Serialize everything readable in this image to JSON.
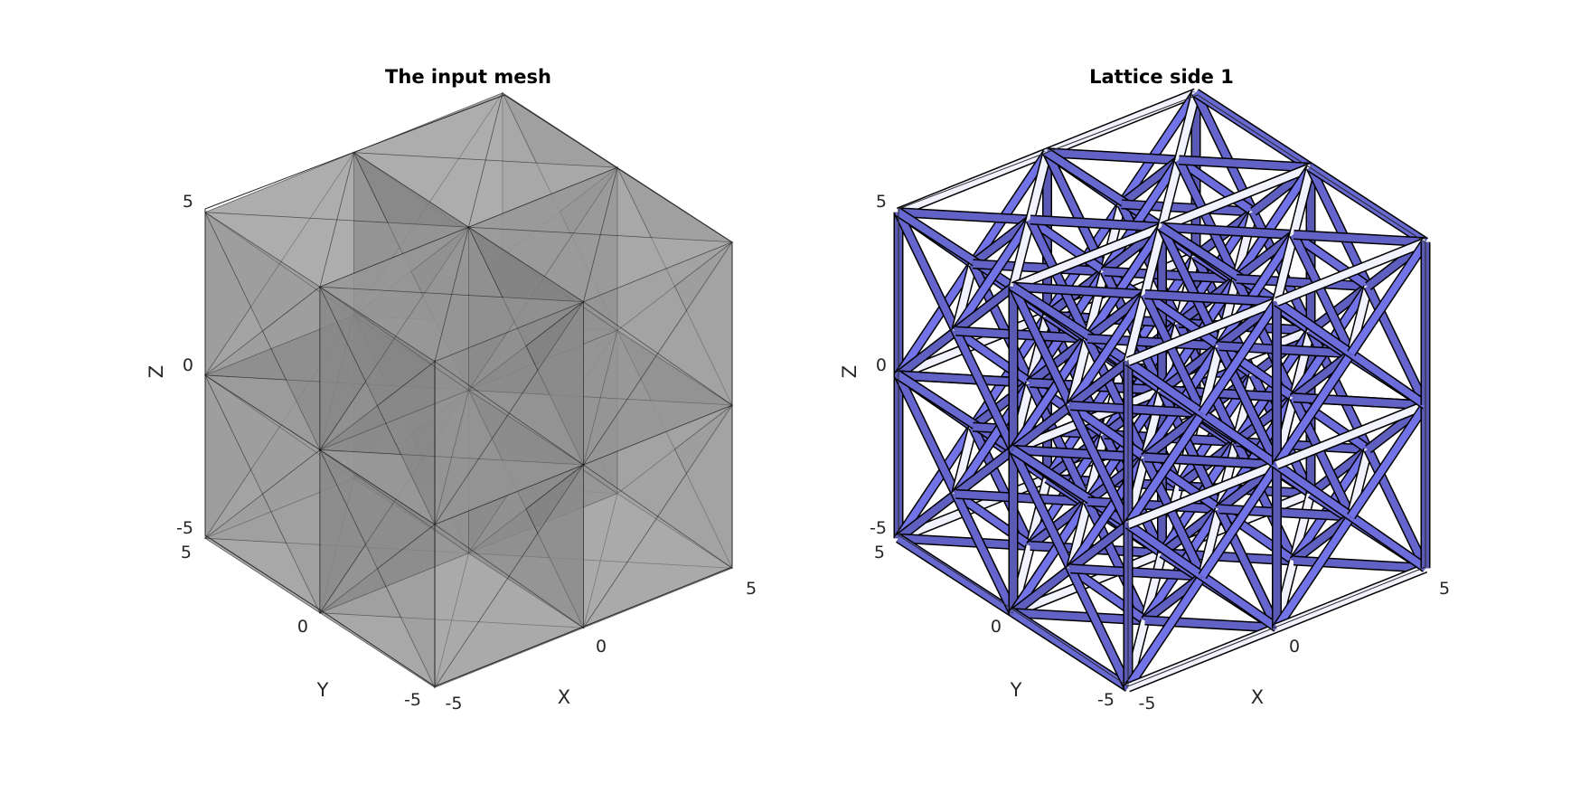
{
  "figure": {
    "panels": [
      {
        "title": "The input mesh",
        "xlabel": "X",
        "ylabel": "Y",
        "zlabel": "Z",
        "x_ticks": [
          "-5",
          "0",
          "5"
        ],
        "y_ticks": [
          "-5",
          "0",
          "5"
        ],
        "z_ticks": [
          "-5",
          "0",
          "5"
        ],
        "style": "solid-mesh",
        "face_color": "#9a9a9a",
        "edge_color": "#000000"
      },
      {
        "title": "Lattice side 1",
        "xlabel": "X",
        "ylabel": "Y",
        "zlabel": "Z",
        "x_ticks": [
          "-5",
          "0",
          "5"
        ],
        "y_ticks": [
          "-5",
          "0",
          "5"
        ],
        "z_ticks": [
          "-5",
          "0",
          "5"
        ],
        "style": "lattice",
        "face_color": "#6a6ad6",
        "edge_color": "#000000"
      }
    ]
  }
}
